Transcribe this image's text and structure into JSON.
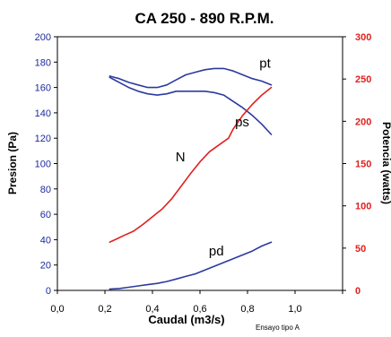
{
  "chart_data": {
    "type": "line",
    "title": "CA 250 - 890 R.P.M.",
    "xlabel": "Caudal  (m3/s)",
    "ylabel_left": "Presion (Pa)",
    "ylabel_right": "Potencia (watts)",
    "footnote": "Ensayo tipo A",
    "xlim": [
      0,
      1.2
    ],
    "ylim_left": [
      0,
      200
    ],
    "ylim_right": [
      0,
      300
    ],
    "x_ticks": [
      "0,0",
      "0,2",
      "0,4",
      "0,6",
      "0,8",
      "1,0"
    ],
    "x_tick_values": [
      0,
      0.2,
      0.4,
      0.6,
      0.8,
      1.0
    ],
    "y_left_ticks": [
      0,
      20,
      40,
      60,
      80,
      100,
      120,
      140,
      160,
      180,
      200
    ],
    "y_right_ticks": [
      0,
      50,
      100,
      150,
      200,
      250,
      300
    ],
    "grid": false,
    "colors": {
      "left_axis": "#1f2a9e",
      "right_axis": "#e0201e",
      "frame": "#000000"
    },
    "series": [
      {
        "name": "pt",
        "axis": "left",
        "color": "#2b3a9e",
        "points": [
          [
            0.22,
            169
          ],
          [
            0.26,
            167
          ],
          [
            0.3,
            164
          ],
          [
            0.34,
            162
          ],
          [
            0.38,
            160
          ],
          [
            0.42,
            160
          ],
          [
            0.46,
            162
          ],
          [
            0.5,
            166
          ],
          [
            0.54,
            170
          ],
          [
            0.58,
            172
          ],
          [
            0.62,
            174
          ],
          [
            0.66,
            175
          ],
          [
            0.7,
            175
          ],
          [
            0.74,
            173
          ],
          [
            0.78,
            170
          ],
          [
            0.82,
            167
          ],
          [
            0.86,
            165
          ],
          [
            0.9,
            162
          ]
        ]
      },
      {
        "name": "ps",
        "axis": "left",
        "color": "#2b3a9e",
        "points": [
          [
            0.22,
            168
          ],
          [
            0.26,
            164
          ],
          [
            0.3,
            160
          ],
          [
            0.34,
            157
          ],
          [
            0.38,
            155
          ],
          [
            0.42,
            154
          ],
          [
            0.46,
            155
          ],
          [
            0.5,
            157
          ],
          [
            0.54,
            157
          ],
          [
            0.58,
            157
          ],
          [
            0.62,
            157
          ],
          [
            0.66,
            156
          ],
          [
            0.7,
            154
          ],
          [
            0.74,
            149
          ],
          [
            0.78,
            144
          ],
          [
            0.82,
            138
          ],
          [
            0.86,
            131
          ],
          [
            0.9,
            123
          ]
        ]
      },
      {
        "name": "pd",
        "axis": "left",
        "color": "#2b3a9e",
        "points": [
          [
            0.22,
            1
          ],
          [
            0.26,
            1.5
          ],
          [
            0.3,
            2.5
          ],
          [
            0.34,
            3.5
          ],
          [
            0.38,
            4.5
          ],
          [
            0.42,
            5.5
          ],
          [
            0.46,
            7
          ],
          [
            0.5,
            9
          ],
          [
            0.54,
            11
          ],
          [
            0.58,
            13
          ],
          [
            0.62,
            16
          ],
          [
            0.66,
            19
          ],
          [
            0.7,
            22
          ],
          [
            0.74,
            25
          ],
          [
            0.78,
            28
          ],
          [
            0.82,
            31
          ],
          [
            0.86,
            35
          ],
          [
            0.9,
            38
          ]
        ]
      },
      {
        "name": "N",
        "axis": "right",
        "color": "#e0201e",
        "points": [
          [
            0.22,
            57
          ],
          [
            0.25,
            61
          ],
          [
            0.28,
            65
          ],
          [
            0.32,
            70
          ],
          [
            0.36,
            78
          ],
          [
            0.4,
            87
          ],
          [
            0.44,
            96
          ],
          [
            0.48,
            108
          ],
          [
            0.52,
            123
          ],
          [
            0.56,
            138
          ],
          [
            0.6,
            152
          ],
          [
            0.64,
            164
          ],
          [
            0.68,
            172
          ],
          [
            0.72,
            180
          ],
          [
            0.74,
            191
          ],
          [
            0.78,
            207
          ],
          [
            0.82,
            220
          ],
          [
            0.86,
            231
          ],
          [
            0.9,
            240
          ]
        ]
      }
    ],
    "curve_labels": [
      {
        "text": "pt",
        "series": "pt"
      },
      {
        "text": "ps",
        "series": "ps"
      },
      {
        "text": "N",
        "series": "N"
      },
      {
        "text": "pd",
        "series": "pd"
      }
    ]
  }
}
